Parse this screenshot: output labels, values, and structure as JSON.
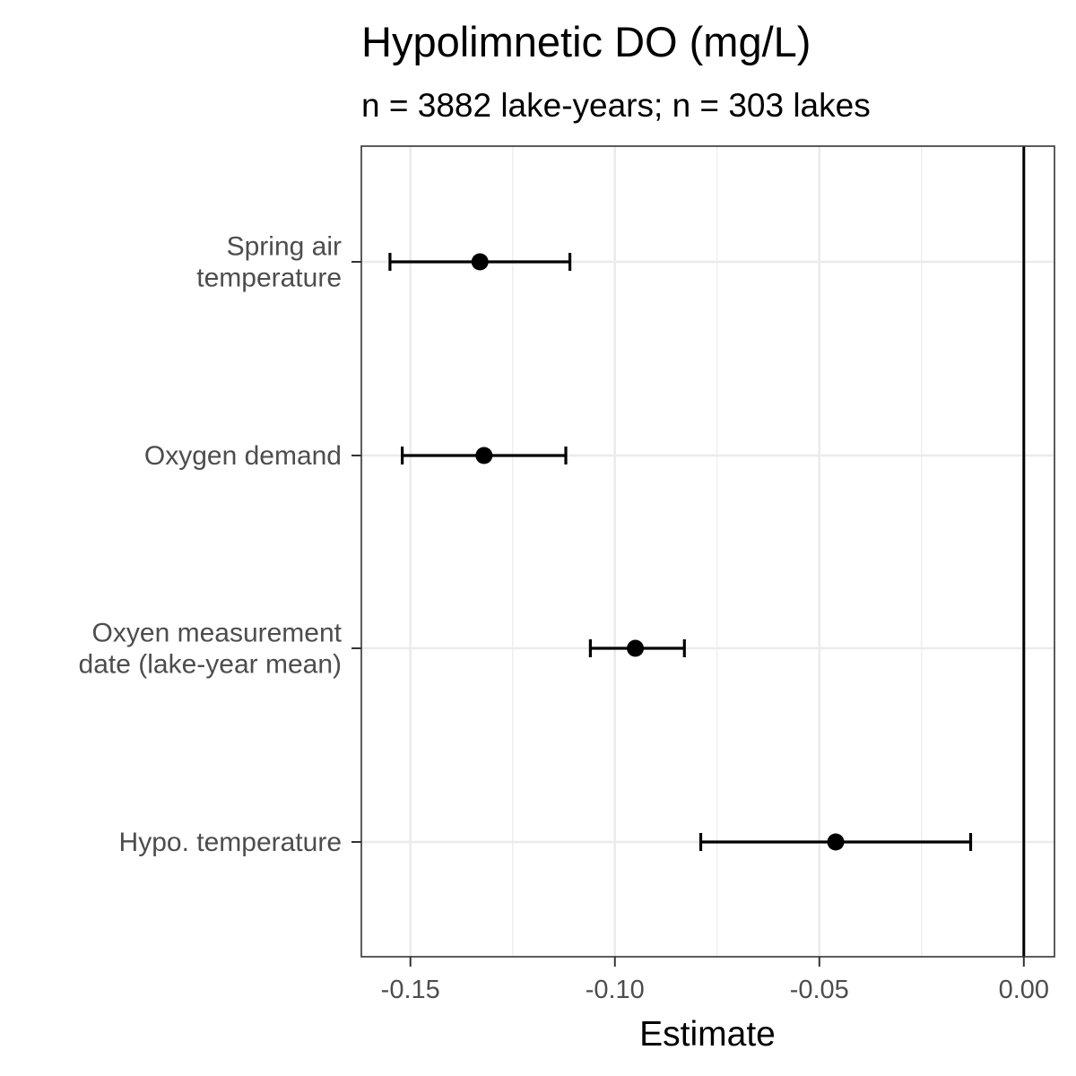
{
  "chart_data": {
    "type": "scatter",
    "title": "Hypolimnetic DO (mg/L)",
    "subtitle": "n = 3882 lake-years; n = 303 lakes",
    "xlabel": "Estimate",
    "ylabel": "",
    "xlim": [
      -0.162,
      0.0075
    ],
    "x_ticks": [
      -0.15,
      -0.1,
      -0.05,
      0.0
    ],
    "x_tick_labels": [
      "-0.15",
      "-0.10",
      "-0.05",
      "0.00"
    ],
    "reference_line": 0.0,
    "grid": true,
    "categories": [
      [
        "Spring air",
        "temperature"
      ],
      [
        "Oxygen demand"
      ],
      [
        "Oxyen measurement",
        "date (lake-year mean)"
      ],
      [
        "Hypo. temperature"
      ]
    ],
    "estimates": [
      -0.133,
      -0.132,
      -0.095,
      -0.046
    ],
    "ci_lower": [
      -0.155,
      -0.152,
      -0.106,
      -0.079
    ],
    "ci_upper": [
      -0.111,
      -0.112,
      -0.083,
      -0.013
    ],
    "colors": {
      "point": "#000000",
      "grid": "#ebebeb",
      "frame": "#333333",
      "zero_line": "#000000"
    }
  }
}
